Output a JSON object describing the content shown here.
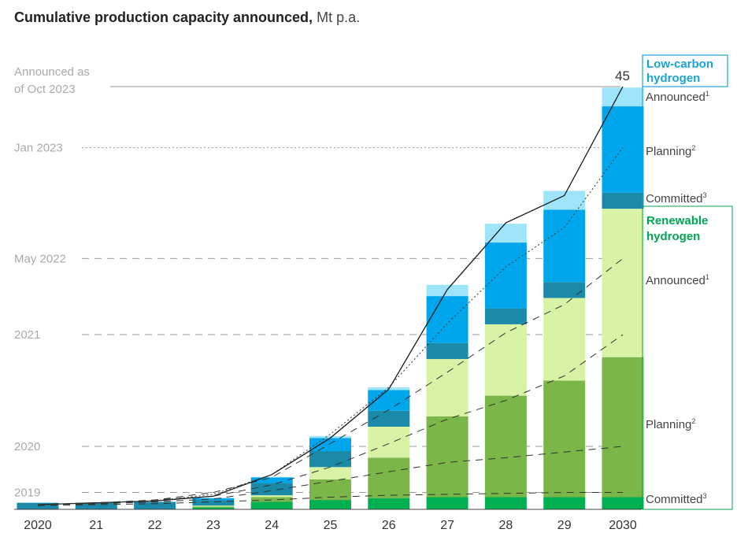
{
  "chart_data": {
    "type": "bar",
    "stacked": true,
    "title": "Cumulative production capacity announced,",
    "unit": "Mt p.a.",
    "categories": [
      "2020",
      "21",
      "22",
      "23",
      "24",
      "25",
      "26",
      "27",
      "28",
      "29",
      "2030"
    ],
    "ylim": [
      0,
      45
    ],
    "total_label": "45",
    "series": [
      {
        "name": "Renewable Committed",
        "group": "Renewable hydrogen",
        "color": "#00b050",
        "values": [
          0,
          0,
          0,
          0.2,
          0.8,
          1.0,
          1.2,
          1.3,
          1.3,
          1.3,
          1.3
        ]
      },
      {
        "name": "Renewable Planning",
        "group": "Renewable hydrogen",
        "color": "#7ab648",
        "values": [
          0,
          0,
          0,
          0.1,
          0.5,
          2.2,
          4.3,
          8.6,
          10.8,
          12.4,
          14.9
        ]
      },
      {
        "name": "Renewable Announced",
        "group": "Renewable hydrogen",
        "color": "#d8f2a6",
        "values": [
          0,
          0,
          0,
          0.1,
          0.2,
          1.3,
          3.3,
          6.1,
          7.6,
          8.8,
          15.8
        ]
      },
      {
        "name": "Low-carbon Committed",
        "group": "Low-carbon hydrogen",
        "color": "#1a8aa8",
        "values": [
          0.7,
          0.7,
          0.8,
          0.6,
          1.3,
          1.7,
          1.7,
          1.7,
          1.7,
          1.7,
          1.7
        ]
      },
      {
        "name": "Low-carbon Planning",
        "group": "Low-carbon hydrogen",
        "color": "#00a6eb",
        "values": [
          0,
          0,
          0,
          0.2,
          0.6,
          1.4,
          2.2,
          5.0,
          7.0,
          7.7,
          9.2
        ]
      },
      {
        "name": "Low-carbon Announced",
        "group": "Low-carbon hydrogen",
        "color": "#9ee5fb",
        "values": [
          0,
          0,
          0,
          0,
          0.05,
          0.2,
          0.3,
          1.2,
          2.0,
          2.0,
          2.0
        ]
      }
    ],
    "reference_lines": [
      {
        "label": "Announced as of Oct 2023",
        "style": "solid",
        "level": 45,
        "values": [
          0.5,
          0.7,
          0.9,
          1.4,
          3.7,
          7.6,
          12.8,
          23.4,
          30.5,
          33.4,
          45
        ]
      },
      {
        "label": "Jan 2023",
        "style": "dotted",
        "level": 38.5,
        "values": [
          0.5,
          0.7,
          0.9,
          1.6,
          3.7,
          8.0,
          13.0,
          19.8,
          25.8,
          30.0,
          38.5
        ]
      },
      {
        "label": "May 2022",
        "style": "dashed",
        "level": 26.7,
        "values": [
          0.5,
          0.7,
          1.0,
          1.8,
          3.4,
          7.0,
          10.6,
          14.6,
          18.8,
          21.8,
          26.7
        ]
      },
      {
        "label": "2021",
        "style": "dashed",
        "level": 18.6,
        "values": [
          0.5,
          0.6,
          1.0,
          1.4,
          2.6,
          4.5,
          7.0,
          9.6,
          11.6,
          14.2,
          18.6
        ]
      },
      {
        "label": "2020",
        "style": "dashed",
        "level": 6.7,
        "values": [
          0.5,
          0.6,
          0.8,
          1.1,
          2.0,
          3.0,
          4.0,
          5.0,
          5.5,
          6.1,
          6.7
        ]
      },
      {
        "label": "2019",
        "style": "dashed",
        "level": 1.8,
        "values": [
          0.4,
          0.5,
          0.6,
          0.8,
          1.0,
          1.3,
          1.5,
          1.6,
          1.7,
          1.8,
          1.8
        ]
      }
    ],
    "reference_label_lines": {
      "announced_oct_2023": [
        "Announced as",
        "of Oct 2023"
      ]
    },
    "legend": {
      "low_carbon": {
        "title_lines": [
          "Low-carbon",
          "hydrogen"
        ],
        "color": "#1aa3d4",
        "items": [
          {
            "text": "Announced",
            "sup": "1"
          },
          {
            "text": "Planning",
            "sup": "2"
          },
          {
            "text": "Committed",
            "sup": "3"
          }
        ]
      },
      "renewable": {
        "title_lines": [
          "Renewable",
          "hydrogen"
        ],
        "color": "#00a651",
        "items": [
          {
            "text": "Announced",
            "sup": "1"
          },
          {
            "text": "Planning",
            "sup": "2"
          },
          {
            "text": "Committed",
            "sup": "3"
          }
        ]
      }
    }
  }
}
